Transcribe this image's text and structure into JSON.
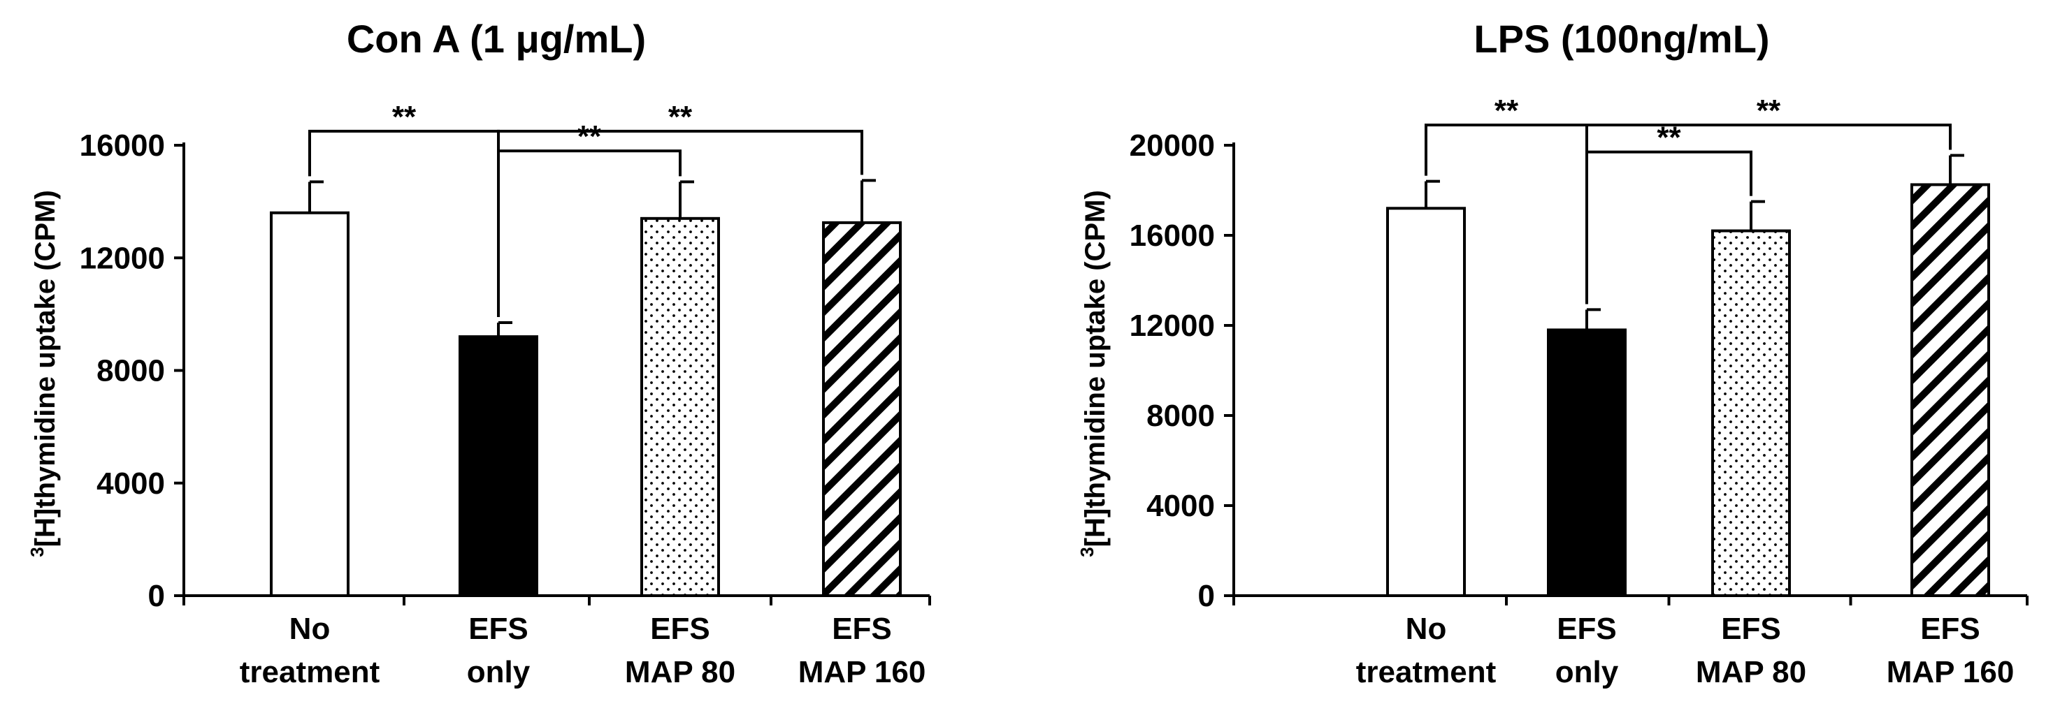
{
  "chart_data": [
    {
      "type": "bar",
      "title": "Con A  (1 μg/mL)",
      "ylabel_sup": "3",
      "ylabel": "[H]thymidine uptake (CPM)",
      "xlabel": "",
      "ylim": [
        0,
        16000
      ],
      "yticks": [
        0,
        4000,
        8000,
        12000,
        16000
      ],
      "categories": [
        {
          "line1": "No",
          "line2": "treatment"
        },
        {
          "line1": "EFS",
          "line2": "only"
        },
        {
          "line1": "EFS",
          "line2": "MAP 80"
        },
        {
          "line1": "EFS",
          "line2": "MAP 160"
        }
      ],
      "values": [
        13600,
        9200,
        13400,
        13250
      ],
      "errors": [
        1100,
        500,
        1300,
        1500
      ],
      "fills": [
        "white",
        "black",
        "dots",
        "stripes"
      ],
      "significance": [
        {
          "from": 0,
          "to": 1,
          "label": "**",
          "level": 16500
        },
        {
          "from": 1,
          "to": 2,
          "label": "**",
          "level": 15800
        },
        {
          "from": 1,
          "to": 3,
          "label": "**",
          "level": 16500
        }
      ]
    },
    {
      "type": "bar",
      "title": "LPS (100ng/mL)",
      "ylabel_sup": "3",
      "ylabel": "[H]thymidine uptake (CPM)",
      "xlabel": "",
      "ylim": [
        0,
        20000
      ],
      "yticks": [
        0,
        4000,
        8000,
        12000,
        16000,
        20000
      ],
      "categories": [
        {
          "line1": "No",
          "line2": "treatment"
        },
        {
          "line1": "EFS",
          "line2": "only"
        },
        {
          "line1": "EFS",
          "line2": "MAP 80"
        },
        {
          "line1": "EFS",
          "line2": "MAP 160"
        }
      ],
      "values": [
        17200,
        11800,
        16200,
        18250
      ],
      "errors": [
        1200,
        900,
        1300,
        1300
      ],
      "fills": [
        "white",
        "black",
        "dots",
        "stripes"
      ],
      "significance": [
        {
          "from": 0,
          "to": 1,
          "label": "**",
          "level": 20900
        },
        {
          "from": 1,
          "to": 2,
          "label": "**",
          "level": 19700
        },
        {
          "from": 1,
          "to": 3,
          "label": "**",
          "level": 20900
        }
      ]
    }
  ]
}
